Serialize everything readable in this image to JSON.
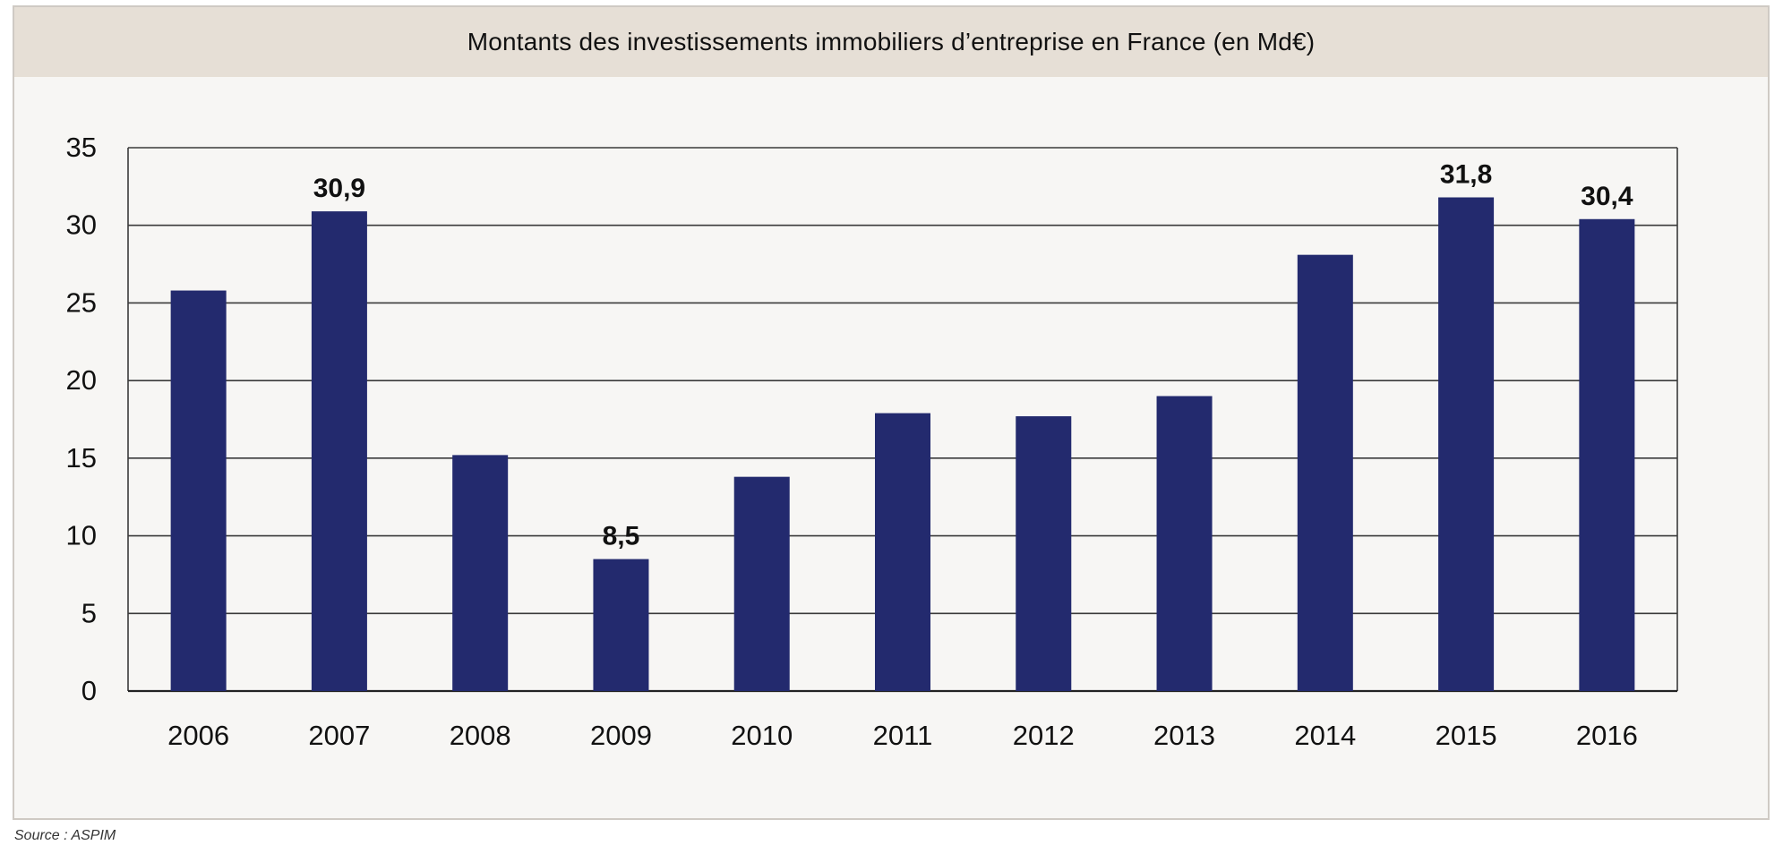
{
  "chart_data": {
    "type": "bar",
    "title": "Montants des investissements immobiliers d’entreprise en France (en Md€)",
    "categories": [
      "2006",
      "2007",
      "2008",
      "2009",
      "2010",
      "2011",
      "2012",
      "2013",
      "2014",
      "2015",
      "2016"
    ],
    "values": [
      25.8,
      30.9,
      15.2,
      8.5,
      13.8,
      17.9,
      17.7,
      19.0,
      28.1,
      31.8,
      30.4
    ],
    "data_labels": {
      "1": "30,9",
      "3": "8,5",
      "9": "31,8",
      "10": "30,4"
    },
    "yticks": [
      "0",
      "5",
      "10",
      "15",
      "20",
      "25",
      "30",
      "35"
    ],
    "ylim": [
      0,
      35
    ],
    "xlabel": "",
    "ylabel": "",
    "grid": true,
    "legend": "none",
    "bar_color": "#232a6e",
    "grid_color": "#3a3a3a",
    "source": "Source : ASPIM"
  }
}
